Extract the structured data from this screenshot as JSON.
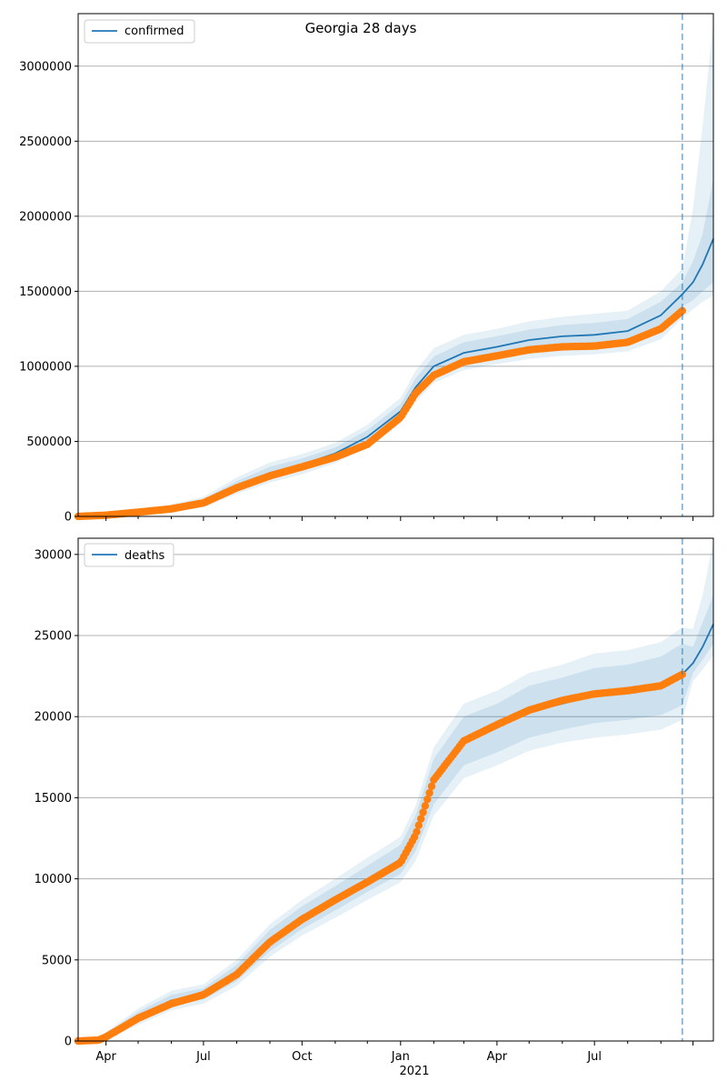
{
  "title": "Georgia 28 days",
  "colors": {
    "model": "#1f77b4",
    "observed": "#ff7f0e",
    "band": "#1f77b4",
    "grid": "#b0b0b0",
    "forecast_line": "#1f77b4"
  },
  "chart_data": [
    {
      "type": "line",
      "legend": "confirmed",
      "legend_position": "top-left",
      "grid": "horizontal",
      "x_range": [
        "2020-03-06",
        "2021-10-20"
      ],
      "ylim": [
        0,
        3350000
      ],
      "yticks": [
        0,
        500000,
        1000000,
        1500000,
        2000000,
        2500000,
        3000000
      ],
      "ytick_labels": [
        "0",
        "500000",
        "1000000",
        "1500000",
        "2000000",
        "2500000",
        "3000000"
      ],
      "forecast_start": "2021-09-21",
      "x_dates": [
        "2020-03-06",
        "2020-04-01",
        "2020-05-01",
        "2020-06-01",
        "2020-07-01",
        "2020-08-01",
        "2020-09-01",
        "2020-10-01",
        "2020-11-01",
        "2020-12-01",
        "2021-01-01",
        "2021-01-15",
        "2021-02-01",
        "2021-03-01",
        "2021-04-01",
        "2021-05-01",
        "2021-06-01",
        "2021-07-01",
        "2021-08-01",
        "2021-09-01",
        "2021-09-21",
        "2021-10-01",
        "2021-10-10",
        "2021-10-20"
      ],
      "model": [
        0,
        10000,
        30000,
        55000,
        95000,
        200000,
        290000,
        345000,
        420000,
        530000,
        700000,
        860000,
        1000000,
        1090000,
        1130000,
        1175000,
        1200000,
        1210000,
        1235000,
        1340000,
        1480000,
        1560000,
        1680000,
        1850000
      ],
      "band_inner": [
        [
          0,
          0
        ],
        [
          5000,
          15000
        ],
        [
          22000,
          38000
        ],
        [
          40000,
          70000
        ],
        [
          75000,
          115000
        ],
        [
          170000,
          235000
        ],
        [
          250000,
          330000
        ],
        [
          305000,
          385000
        ],
        [
          380000,
          460000
        ],
        [
          490000,
          575000
        ],
        [
          650000,
          750000
        ],
        [
          800000,
          920000
        ],
        [
          935000,
          1065000
        ],
        [
          1020000,
          1160000
        ],
        [
          1060000,
          1200000
        ],
        [
          1100000,
          1245000
        ],
        [
          1125000,
          1275000
        ],
        [
          1135000,
          1290000
        ],
        [
          1155000,
          1315000
        ],
        [
          1250000,
          1430000
        ],
        [
          1400000,
          1560000
        ],
        [
          1440000,
          1700000
        ],
        [
          1500000,
          1880000
        ],
        [
          1560000,
          2250000
        ]
      ],
      "band_outer": [
        [
          0,
          0
        ],
        [
          0,
          20000
        ],
        [
          15000,
          45000
        ],
        [
          30000,
          80000
        ],
        [
          60000,
          130000
        ],
        [
          150000,
          260000
        ],
        [
          225000,
          360000
        ],
        [
          280000,
          415000
        ],
        [
          355000,
          490000
        ],
        [
          460000,
          610000
        ],
        [
          620000,
          790000
        ],
        [
          760000,
          970000
        ],
        [
          890000,
          1120000
        ],
        [
          975000,
          1210000
        ],
        [
          1015000,
          1250000
        ],
        [
          1050000,
          1300000
        ],
        [
          1070000,
          1330000
        ],
        [
          1080000,
          1350000
        ],
        [
          1100000,
          1370000
        ],
        [
          1180000,
          1500000
        ],
        [
          1320000,
          1650000
        ],
        [
          1380000,
          2050000
        ],
        [
          1430000,
          2600000
        ],
        [
          1470000,
          3300000
        ]
      ],
      "observed_x": [
        "2020-03-06",
        "2020-04-01",
        "2020-05-01",
        "2020-06-01",
        "2020-07-01",
        "2020-08-01",
        "2020-09-01",
        "2020-10-01",
        "2020-11-01",
        "2020-12-01",
        "2021-01-01",
        "2021-01-15",
        "2021-02-01",
        "2021-03-01",
        "2021-04-01",
        "2021-05-01",
        "2021-06-01",
        "2021-07-01",
        "2021-08-01",
        "2021-09-01",
        "2021-09-21"
      ],
      "observed": [
        0,
        8000,
        28000,
        50000,
        90000,
        190000,
        270000,
        330000,
        395000,
        480000,
        660000,
        820000,
        940000,
        1030000,
        1070000,
        1110000,
        1130000,
        1135000,
        1160000,
        1250000,
        1370000
      ]
    },
    {
      "type": "line",
      "legend": "deaths",
      "legend_position": "top-left",
      "grid": "horizontal",
      "x_range": [
        "2020-03-06",
        "2021-10-20"
      ],
      "ylim": [
        0,
        31000
      ],
      "yticks": [
        0,
        5000,
        10000,
        15000,
        20000,
        25000,
        30000
      ],
      "ytick_labels": [
        "0",
        "5000",
        "10000",
        "15000",
        "20000",
        "25000",
        "30000"
      ],
      "xticks": [
        "2020-04-01",
        "2020-07-01",
        "2020-10-01",
        "2021-01-01",
        "2021-04-01",
        "2021-07-01"
      ],
      "xtick_labels": [
        "Apr",
        "Jul",
        "Oct",
        "Jan",
        "Apr",
        "Jul"
      ],
      "year_label": "2021",
      "forecast_start": "2021-09-21",
      "x_dates": [
        "2020-03-06",
        "2020-03-25",
        "2020-04-01",
        "2020-05-01",
        "2020-06-01",
        "2020-07-01",
        "2020-08-01",
        "2020-09-01",
        "2020-10-01",
        "2020-11-01",
        "2020-12-01",
        "2021-01-01",
        "2021-01-15",
        "2021-02-01",
        "2021-03-01",
        "2021-04-01",
        "2021-05-01",
        "2021-06-01",
        "2021-07-01",
        "2021-08-01",
        "2021-09-01",
        "2021-09-21",
        "2021-10-01",
        "2021-10-10",
        "2021-10-20"
      ],
      "model": [
        0,
        50,
        300,
        1500,
        2500,
        2900,
        4200,
        6200,
        7600,
        8800,
        10000,
        11200,
        12800,
        16000,
        18500,
        19300,
        20300,
        20800,
        21300,
        21500,
        21900,
        22600,
        23300,
        24300,
        25700
      ],
      "band_inner": [
        [
          0,
          0
        ],
        [
          0,
          100
        ],
        [
          150,
          450
        ],
        [
          1200,
          1800
        ],
        [
          2150,
          2850
        ],
        [
          2550,
          3250
        ],
        [
          3700,
          4700
        ],
        [
          5550,
          6850
        ],
        [
          6900,
          8300
        ],
        [
          8050,
          9550
        ],
        [
          9200,
          10800
        ],
        [
          10300,
          12100
        ],
        [
          11700,
          13900
        ],
        [
          14600,
          17400
        ],
        [
          17000,
          20000
        ],
        [
          17800,
          20800
        ],
        [
          18700,
          21900
        ],
        [
          19200,
          22400
        ],
        [
          19600,
          23000
        ],
        [
          19800,
          23200
        ],
        [
          20100,
          23700
        ],
        [
          20700,
          24500
        ],
        [
          22700,
          24300
        ],
        [
          23500,
          25800
        ],
        [
          24500,
          27500
        ]
      ],
      "band_outer": [
        [
          0,
          0
        ],
        [
          0,
          150
        ],
        [
          50,
          550
        ],
        [
          1000,
          2000
        ],
        [
          1900,
          3100
        ],
        [
          2300,
          3500
        ],
        [
          3400,
          5000
        ],
        [
          5200,
          7200
        ],
        [
          6500,
          8700
        ],
        [
          7600,
          10000
        ],
        [
          8700,
          11300
        ],
        [
          9800,
          12600
        ],
        [
          11100,
          14500
        ],
        [
          13900,
          18100
        ],
        [
          16200,
          20800
        ],
        [
          17000,
          21600
        ],
        [
          17900,
          22700
        ],
        [
          18400,
          23200
        ],
        [
          18700,
          23900
        ],
        [
          18900,
          24100
        ],
        [
          19200,
          24600
        ],
        [
          19800,
          25500
        ],
        [
          22200,
          25400
        ],
        [
          22900,
          27500
        ],
        [
          23800,
          30800
        ]
      ],
      "observed_x": [
        "2020-03-06",
        "2020-03-25",
        "2020-04-01",
        "2020-05-01",
        "2020-06-01",
        "2020-07-01",
        "2020-08-01",
        "2020-09-01",
        "2020-10-01",
        "2020-11-01",
        "2020-12-01",
        "2021-01-01",
        "2021-01-15",
        "2021-02-01",
        "2021-03-01",
        "2021-04-01",
        "2021-05-01",
        "2021-06-01",
        "2021-07-01",
        "2021-08-01",
        "2021-09-01",
        "2021-09-21"
      ],
      "observed": [
        0,
        50,
        250,
        1400,
        2300,
        2850,
        4100,
        6100,
        7500,
        8700,
        9800,
        11000,
        12700,
        16100,
        18500,
        19500,
        20400,
        21000,
        21400,
        21600,
        21900,
        22600
      ]
    }
  ]
}
